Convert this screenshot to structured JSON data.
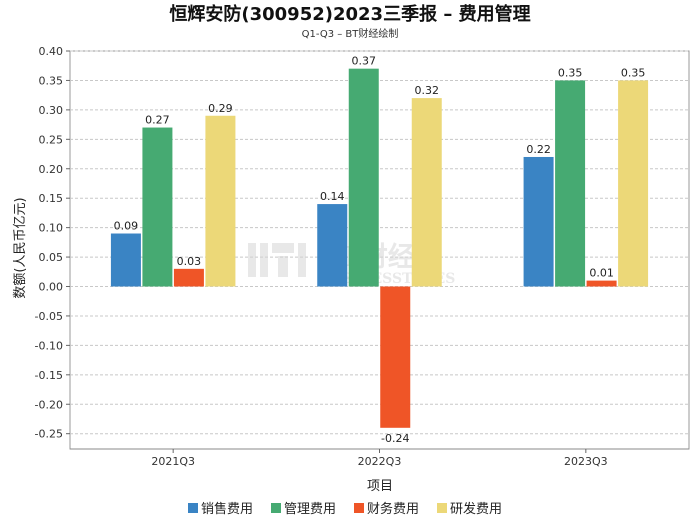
{
  "chart_data": {
    "type": "bar",
    "title": "恒辉安防(300952)2023三季报 – 费用管理",
    "subtitle": "Q1-Q3 – BT财经绘制",
    "xlabel": "项目",
    "ylabel": "数额(人民币亿元)",
    "categories": [
      "2021Q3",
      "2022Q3",
      "2023Q3"
    ],
    "ylim": [
      -0.25,
      0.4
    ],
    "yticks": [
      "0.40",
      "0.35",
      "0.30",
      "0.25",
      "0.20",
      "0.15",
      "0.10",
      "0.05",
      "0.00",
      "-0.05",
      "-0.10",
      "-0.15",
      "-0.20",
      "-0.25"
    ],
    "series": [
      {
        "name": "销售费用",
        "color": "#3a84c4",
        "values": [
          0.09,
          0.14,
          0.22
        ],
        "labels": [
          "0.09",
          "0.14",
          "0.22"
        ]
      },
      {
        "name": "管理费用",
        "color": "#46aa72",
        "values": [
          0.27,
          0.37,
          0.35
        ],
        "labels": [
          "0.27",
          "0.37",
          "0.35"
        ]
      },
      {
        "name": "财务费用",
        "color": "#ef5527",
        "values": [
          0.03,
          -0.24,
          0.01
        ],
        "labels": [
          "0.03",
          "-0.24",
          "0.01"
        ]
      },
      {
        "name": "研发费用",
        "color": "#ecd878",
        "values": [
          0.29,
          0.32,
          0.35
        ],
        "labels": [
          "0.29",
          "0.32",
          "0.35"
        ]
      }
    ],
    "watermark": {
      "main": "BT财经",
      "sub": "BUSINESSTIMES"
    }
  }
}
